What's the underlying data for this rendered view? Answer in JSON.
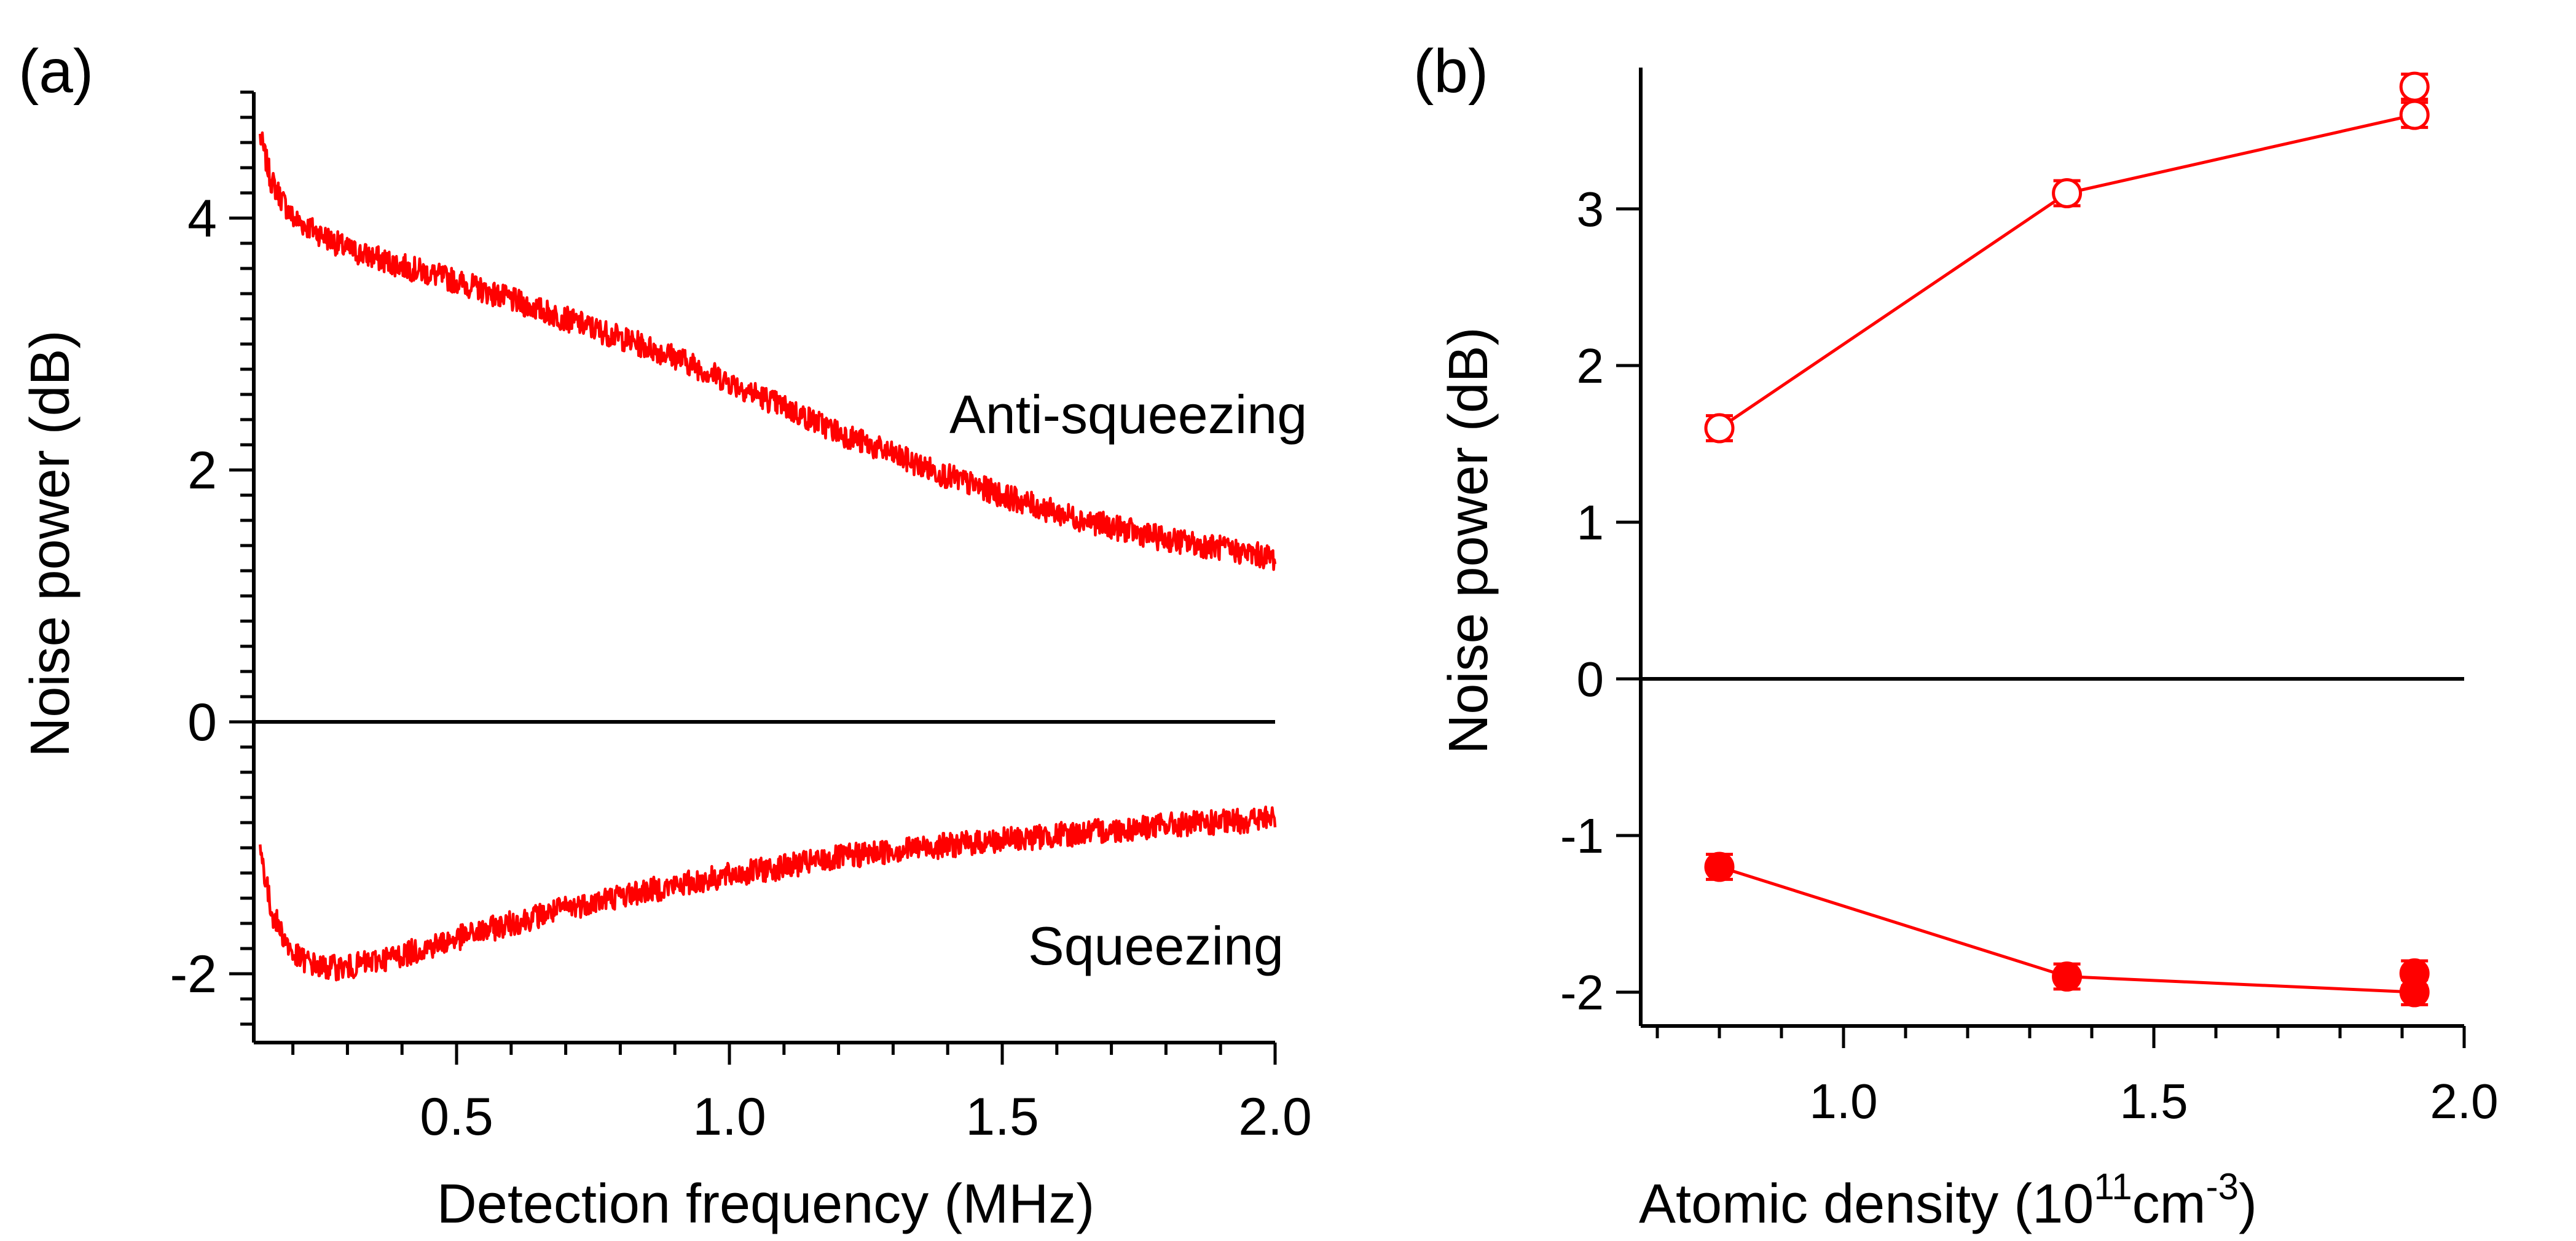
{
  "colors": {
    "series": "#ff0000",
    "axis": "#000000",
    "zero_line": "#000000"
  },
  "chart_data": [
    {
      "panel_label": "(a)",
      "type": "line",
      "xlabel": "Detection frequency (MHz)",
      "ylabel": "Noise power (dB)",
      "xlim": [
        0.13,
        2.0
      ],
      "ylim": [
        -2.5,
        5.1
      ],
      "x_ticks": [
        0.5,
        1.0,
        1.5,
        2.0
      ],
      "x_tick_labels": [
        "0.5",
        "1.0",
        "1.5",
        "2.0"
      ],
      "y_ticks": [
        -2,
        0,
        2,
        4
      ],
      "y_tick_labels": [
        "-2",
        "0",
        "2",
        "4"
      ],
      "zero_line": 0,
      "series": [
        {
          "name": "Anti-squeezing",
          "x": [
            0.14,
            0.16,
            0.2,
            0.3,
            0.4,
            0.5,
            0.6,
            0.7,
            0.8,
            0.9,
            1.0,
            1.1,
            1.2,
            1.3,
            1.4,
            1.5,
            1.6,
            1.7,
            1.8,
            1.9,
            2.0
          ],
          "y": [
            4.65,
            4.3,
            4.0,
            3.75,
            3.62,
            3.5,
            3.35,
            3.2,
            3.05,
            2.9,
            2.7,
            2.5,
            2.3,
            2.12,
            1.95,
            1.8,
            1.66,
            1.55,
            1.45,
            1.38,
            1.3
          ]
        },
        {
          "name": "Squeezing",
          "x": [
            0.14,
            0.16,
            0.2,
            0.25,
            0.3,
            0.4,
            0.5,
            0.6,
            0.7,
            0.8,
            0.9,
            1.0,
            1.1,
            1.2,
            1.3,
            1.4,
            1.5,
            1.6,
            1.7,
            1.8,
            1.9,
            2.0
          ],
          "y": [
            -1.0,
            -1.5,
            -1.85,
            -1.95,
            -1.95,
            -1.85,
            -1.72,
            -1.6,
            -1.48,
            -1.38,
            -1.3,
            -1.22,
            -1.15,
            -1.08,
            -1.02,
            -0.98,
            -0.94,
            -0.9,
            -0.86,
            -0.82,
            -0.8,
            -0.76
          ]
        }
      ],
      "annotations": [
        "Anti-squeezing",
        "Squeezing"
      ]
    },
    {
      "panel_label": "(b)",
      "type": "scatter",
      "xlabel_main": "Atomic density (10",
      "xlabel_sup1": "11",
      "xlabel_unit": "cm",
      "xlabel_sup2": "-3",
      "xlabel_end": ")",
      "ylabel": "Noise power (dB)",
      "xlim": [
        0.65,
        2.0
      ],
      "ylim": [
        -2.25,
        3.9
      ],
      "x_ticks": [
        1.0,
        1.5,
        2.0
      ],
      "x_tick_labels": [
        "1.0",
        "1.5",
        "2.0"
      ],
      "y_ticks": [
        -2,
        -1,
        0,
        1,
        2,
        3
      ],
      "y_tick_labels": [
        "-2",
        "-1",
        "0",
        "1",
        "2",
        "3"
      ],
      "zero_line": 0,
      "series": [
        {
          "name": "Anti-squeezing",
          "marker": "open-circle",
          "x": [
            0.8,
            1.36,
            1.92,
            1.92
          ],
          "y": [
            1.6,
            3.1,
            3.6,
            3.78
          ],
          "err": [
            0.08,
            0.08,
            0.08,
            0.08
          ]
        },
        {
          "name": "Squeezing",
          "marker": "filled-circle",
          "x": [
            0.8,
            1.36,
            1.92,
            1.92
          ],
          "y": [
            -1.2,
            -1.9,
            -2.0,
            -1.88
          ],
          "err": [
            0.08,
            0.08,
            0.08,
            0.08
          ]
        }
      ]
    }
  ]
}
